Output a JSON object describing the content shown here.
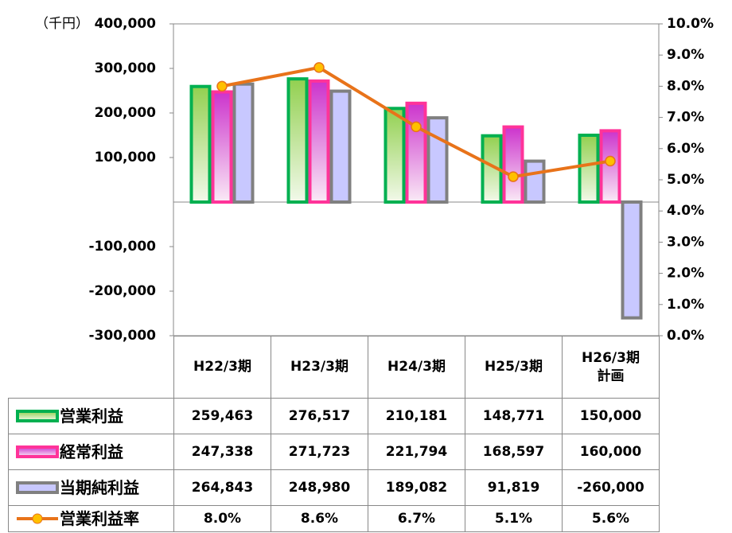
{
  "chart_data": {
    "type": "bar",
    "unit_label": "（千円）",
    "categories": [
      "H22/3期",
      "H23/3期",
      "H24/3期",
      "H25/3期",
      "H26/3期\n計画"
    ],
    "series": [
      {
        "name": "営業利益",
        "color": "#00b050",
        "values": [
          259463,
          276517,
          210181,
          148771,
          150000
        ],
        "value_labels": [
          "259,463",
          "276,517",
          "210,181",
          "148,771",
          "150,000"
        ]
      },
      {
        "name": "経常利益",
        "color": "#ff3399",
        "values": [
          247338,
          271723,
          221794,
          168597,
          160000
        ],
        "value_labels": [
          "247,338",
          "271,723",
          "221,794",
          "168,597",
          "160,000"
        ]
      },
      {
        "name": "当期純利益",
        "color": "#808080",
        "values": [
          264843,
          248980,
          189082,
          91819,
          -260000
        ],
        "value_labels": [
          "264,843",
          "248,980",
          "189,082",
          "91,819",
          "-260,000"
        ]
      },
      {
        "name": "営業利益率",
        "color": "#e8731a",
        "type": "line",
        "axis": "y2",
        "values": [
          8.0,
          8.6,
          6.7,
          5.1,
          5.6
        ],
        "value_labels": [
          "8.0%",
          "8.6%",
          "6.7%",
          "5.1%",
          "5.6%"
        ]
      }
    ],
    "ylim": [
      -300000,
      400000
    ],
    "yticks": [
      {
        "value": -300000,
        "label": "-300,000"
      },
      {
        "value": -200000,
        "label": "-200,000"
      },
      {
        "value": -100000,
        "label": "-100,000"
      },
      {
        "value": 100000,
        "label": "100,000"
      },
      {
        "value": 200000,
        "label": "200,000"
      },
      {
        "value": 300000,
        "label": "300,000"
      },
      {
        "value": 400000,
        "label": "400,000"
      }
    ],
    "y2lim": [
      0,
      10
    ],
    "y2ticks": [
      {
        "value": 0,
        "label": "0.0%"
      },
      {
        "value": 1,
        "label": "1.0%"
      },
      {
        "value": 2,
        "label": "2.0%"
      },
      {
        "value": 3,
        "label": "3.0%"
      },
      {
        "value": 4,
        "label": "4.0%"
      },
      {
        "value": 5,
        "label": "5.0%"
      },
      {
        "value": 6,
        "label": "6.0%"
      },
      {
        "value": 7,
        "label": "7.0%"
      },
      {
        "value": 8,
        "label": "8.0%"
      },
      {
        "value": 9,
        "label": "9.0%"
      },
      {
        "value": 10,
        "label": "10.0%"
      }
    ]
  }
}
